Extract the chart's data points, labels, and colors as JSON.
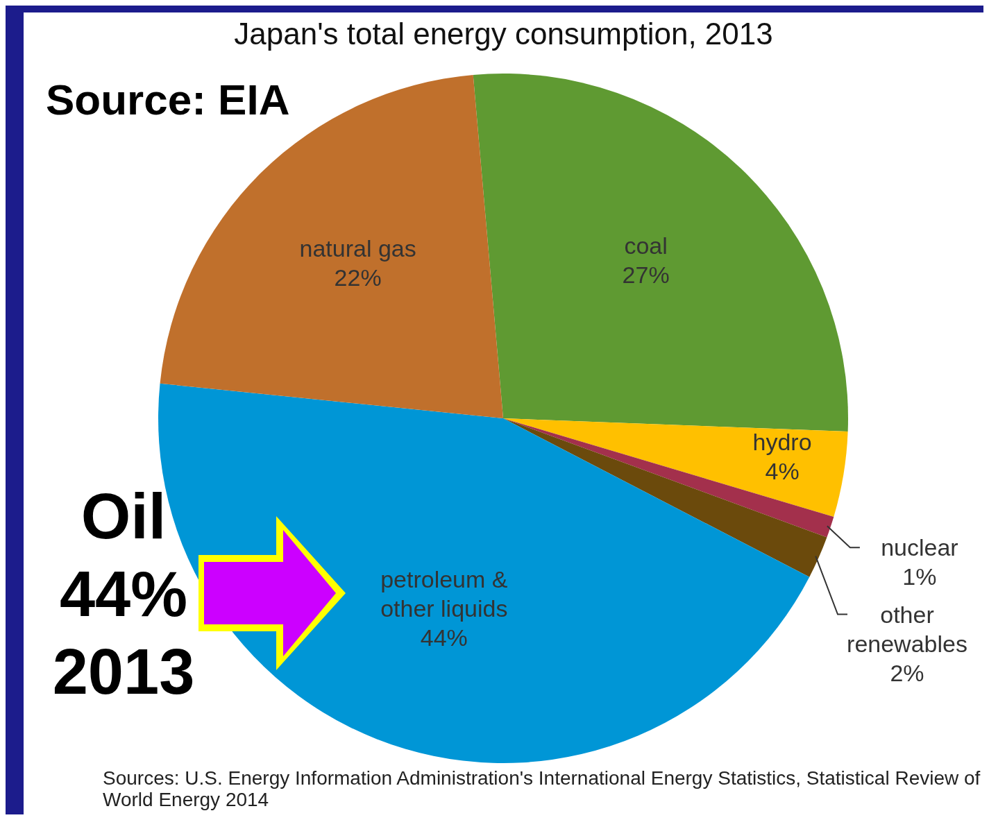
{
  "chart_data": {
    "type": "pie",
    "title": "Japan's total energy consumption, 2013",
    "categories": [
      "coal",
      "hydro",
      "nuclear",
      "other renewables",
      "petroleum & other liquids",
      "natural gas"
    ],
    "values": [
      27,
      4,
      1,
      2,
      44,
      22
    ],
    "value_labels": [
      "27%",
      "4%",
      "1%",
      "2%",
      "44%",
      "22%"
    ],
    "colors": [
      "#5f9a32",
      "#ffc000",
      "#a3304c",
      "#6b4a0c",
      "#0096d6",
      "#c0702c"
    ],
    "legend": false,
    "annotations": [
      "Source: EIA",
      "Oil 44% 2013",
      "Sources: U.S. Energy Information Administration's International Energy Statistics, Statistical Review of World Energy 2014"
    ]
  }
}
